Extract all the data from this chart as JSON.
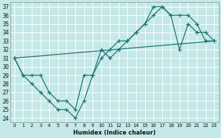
{
  "xlabel": "Humidex (Indice chaleur)",
  "background_color": "#c5e8e8",
  "grid_color": "#b0d8d8",
  "line_color": "#1a7070",
  "xlim": [
    -0.5,
    23.5
  ],
  "ylim": [
    23.5,
    37.5
  ],
  "xticks": [
    0,
    1,
    2,
    3,
    4,
    5,
    6,
    7,
    8,
    9,
    10,
    11,
    12,
    13,
    14,
    15,
    16,
    17,
    18,
    19,
    20,
    21,
    22,
    23
  ],
  "yticks": [
    24,
    25,
    26,
    27,
    28,
    29,
    30,
    31,
    32,
    33,
    34,
    35,
    36,
    37
  ],
  "line1_x": [
    0,
    1,
    2,
    3,
    4,
    5,
    6,
    7,
    8,
    9,
    10,
    11,
    12,
    13,
    14,
    15,
    16,
    17,
    18,
    19,
    20,
    21,
    22,
    23
  ],
  "line1_y": [
    31,
    29,
    29,
    29,
    27,
    26,
    26,
    25,
    29,
    29,
    31,
    32,
    33,
    33,
    34,
    35,
    36,
    37,
    36,
    36,
    36,
    35,
    33,
    33
  ],
  "line2_x": [
    0,
    1,
    2,
    3,
    4,
    5,
    6,
    7,
    8,
    9,
    10,
    11,
    12,
    13,
    14,
    15,
    16,
    17,
    18,
    19,
    20,
    21,
    22,
    23
  ],
  "line2_y": [
    31,
    29,
    28,
    27,
    26,
    25,
    25,
    24,
    26,
    29,
    32,
    31,
    32,
    33,
    34,
    35,
    37,
    37,
    36,
    32,
    35,
    34,
    34,
    33
  ],
  "line3_x": [
    0,
    23
  ],
  "line3_y": [
    31,
    33
  ]
}
